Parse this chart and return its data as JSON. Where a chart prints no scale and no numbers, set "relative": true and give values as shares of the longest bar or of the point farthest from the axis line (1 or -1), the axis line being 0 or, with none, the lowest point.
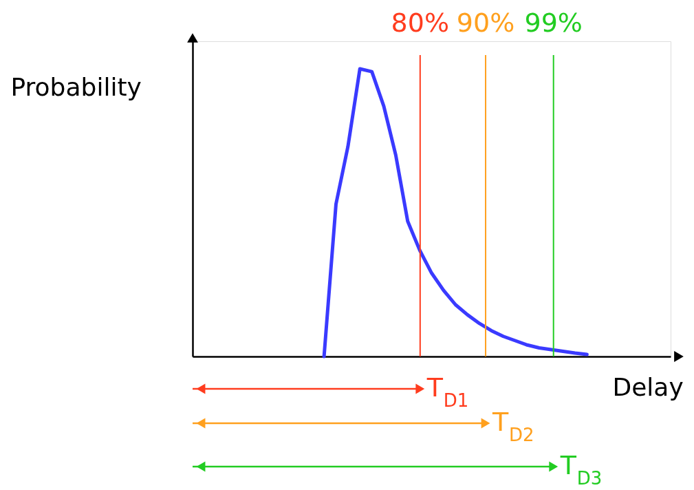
{
  "chart_data": {
    "type": "line",
    "relative": true,
    "xlabel": "Delay",
    "ylabel": "Probability",
    "tick_labels": false,
    "grid": false,
    "legend": false,
    "marker": "none",
    "line_style": "solid",
    "categories": [
      null,
      null,
      null,
      null,
      null,
      null,
      null,
      null,
      null,
      null,
      null,
      null,
      null,
      null,
      null,
      null,
      null,
      null,
      null,
      null,
      null,
      null,
      null,
      null,
      null,
      null,
      null,
      null,
      null,
      null,
      null,
      null,
      null,
      null,
      null,
      null,
      null,
      null,
      null,
      null,
      null
    ],
    "series": [
      {
        "color": "#3a3aff",
        "values": [
          null,
          null,
          null,
          null,
          null,
          null,
          null,
          null,
          null,
          null,
          null,
          0,
          0.53,
          0.73,
          1.0,
          0.99,
          0.87,
          0.7,
          0.47,
          0.37,
          0.29,
          0.23,
          0.18,
          0.145,
          0.115,
          0.09,
          0.07,
          0.055,
          0.04,
          0.03,
          0.024,
          0.018,
          0.012,
          0.007,
          null,
          null,
          null,
          null,
          null,
          null,
          null
        ]
      }
    ],
    "annotations": [
      "80%",
      "90%",
      "99%",
      "T$_{D1}$",
      "T$_{D2}$",
      "T$_{D3}$"
    ]
  }
}
